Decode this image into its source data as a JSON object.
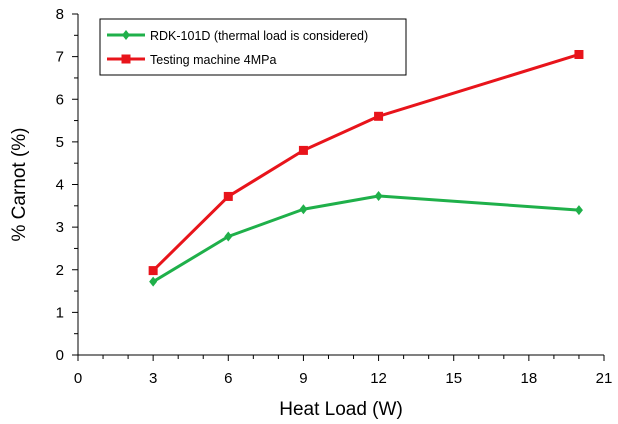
{
  "chart_data": {
    "type": "line",
    "xlabel": "Heat Load (W)",
    "ylabel": "% Carnot (%)",
    "xlim": [
      0,
      21
    ],
    "ylim": [
      0,
      8
    ],
    "x_ticks": [
      0,
      3,
      6,
      9,
      12,
      15,
      18,
      21
    ],
    "y_ticks": [
      0,
      1,
      2,
      3,
      4,
      5,
      6,
      7,
      8
    ],
    "x_minor_step": 1,
    "y_minor_step": 0.5,
    "grid": false,
    "legend_position": "top-left",
    "series": [
      {
        "name": "RDK-101D (thermal load is considered)",
        "color": "#1fb04a",
        "marker": "diamond",
        "x": [
          3,
          6,
          9,
          12,
          20
        ],
        "y": [
          1.72,
          2.78,
          3.42,
          3.73,
          3.4
        ]
      },
      {
        "name": "Testing machine 4MPa",
        "color": "#e8141b",
        "marker": "square",
        "x": [
          3,
          6,
          9,
          12,
          20
        ],
        "y": [
          1.98,
          3.72,
          4.8,
          5.6,
          7.05
        ]
      }
    ]
  }
}
